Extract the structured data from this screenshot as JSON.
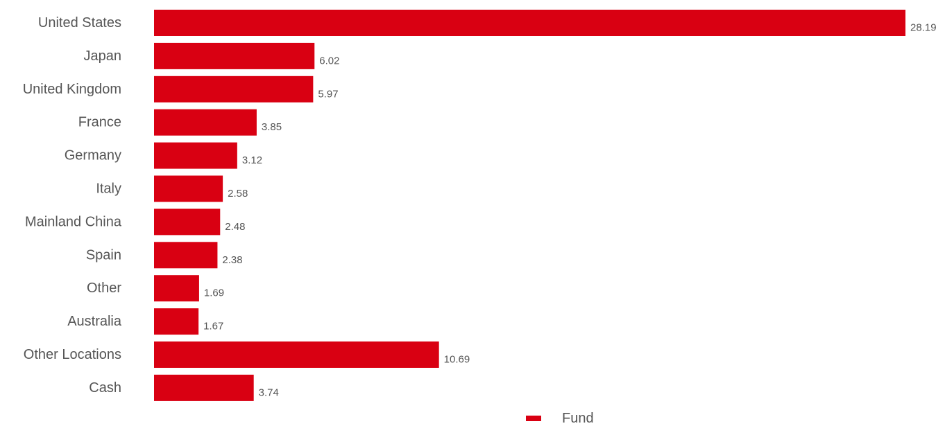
{
  "chart_data": {
    "type": "bar",
    "orientation": "horizontal",
    "title": "",
    "xlabel": "",
    "ylabel": "",
    "grid": false,
    "legend_position": "bottom",
    "categories": [
      "United States",
      "Japan",
      "United Kingdom",
      "France",
      "Germany",
      "Italy",
      "Mainland China",
      "Spain",
      "Other",
      "Australia",
      "Other Locations",
      "Cash"
    ],
    "series": [
      {
        "name": "Fund",
        "color": "#d90012",
        "values": [
          28.19,
          6.02,
          5.97,
          3.85,
          3.12,
          2.58,
          2.48,
          2.38,
          1.69,
          1.67,
          10.69,
          3.74
        ]
      }
    ],
    "value_labels": [
      "28.19",
      "6.02",
      "5.97",
      "3.85",
      "3.12",
      "2.58",
      "2.48",
      "2.38",
      "1.69",
      "1.67",
      "10.69",
      "3.74"
    ],
    "xlim": [
      0,
      28.19
    ]
  }
}
